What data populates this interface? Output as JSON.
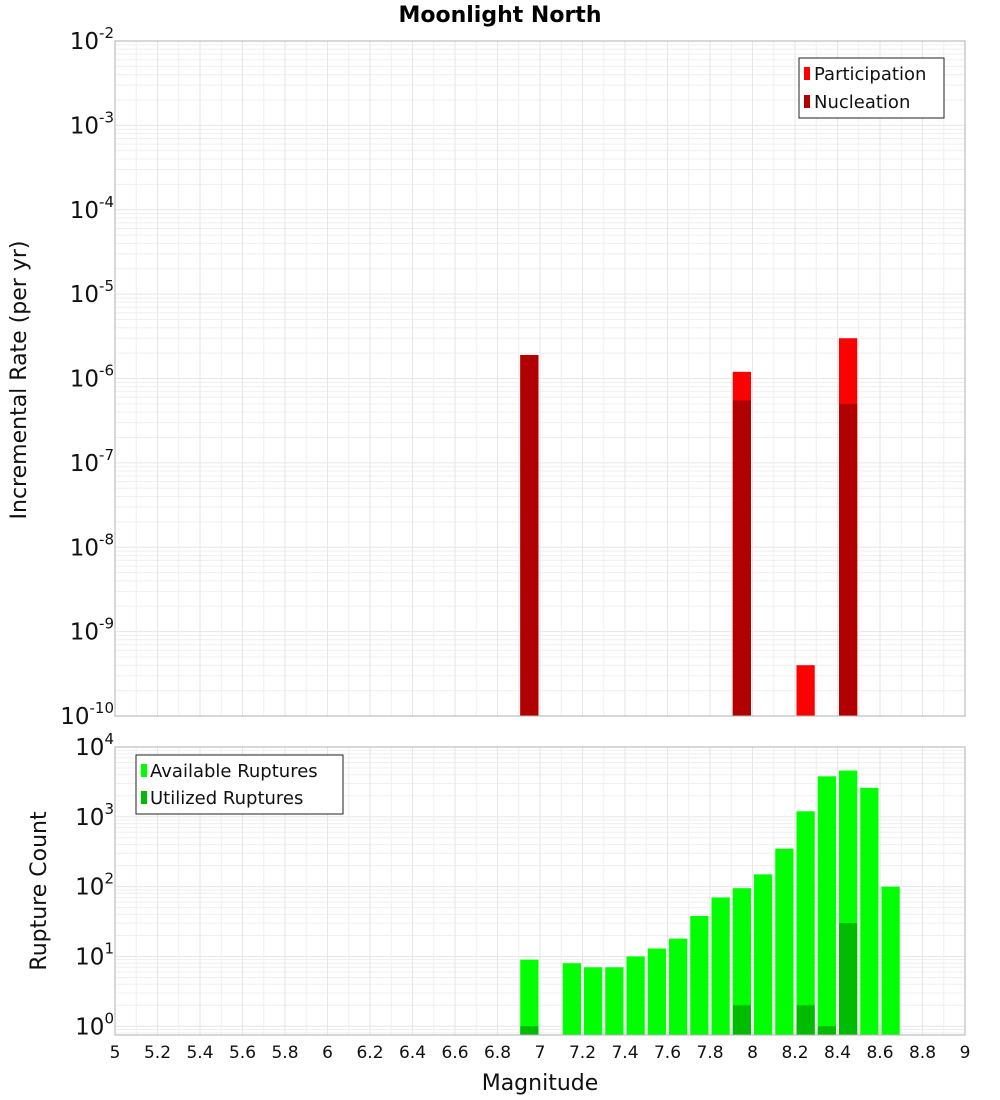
{
  "chart_data": [
    {
      "type": "bar",
      "title": "Moonlight North",
      "xlabel": "",
      "ylabel": "Incremental Rate (per yr)",
      "yscale": "log",
      "ylim": [
        1e-10,
        0.01
      ],
      "xlim": [
        5,
        9
      ],
      "bin_width": 0.1,
      "y_tick_exponents": [
        -10,
        -9,
        -8,
        -7,
        -6,
        -5,
        -4,
        -3,
        -2
      ],
      "legend": {
        "position": "top-right",
        "entries": [
          "Participation",
          "Nucleation"
        ]
      },
      "series": [
        {
          "name": "Participation",
          "color": "#ff0000",
          "points": [
            {
              "x": 6.95,
              "y": 1.9e-06
            },
            {
              "x": 7.95,
              "y": 1.2e-06
            },
            {
              "x": 8.25,
              "y": 4e-10
            },
            {
              "x": 8.45,
              "y": 3e-06
            }
          ]
        },
        {
          "name": "Nucleation",
          "color": "#b00000",
          "points": [
            {
              "x": 6.95,
              "y": 1.9e-06
            },
            {
              "x": 7.95,
              "y": 5.5e-07
            },
            {
              "x": 8.45,
              "y": 5e-07
            }
          ]
        }
      ]
    },
    {
      "type": "bar",
      "title": "",
      "xlabel": "Magnitude",
      "ylabel": "Rupture Count",
      "yscale": "log",
      "ylim": [
        0.75,
        10000
      ],
      "xlim": [
        5,
        9
      ],
      "bin_width": 0.1,
      "x_ticks": [
        "5",
        "5.2",
        "5.4",
        "5.6",
        "5.8",
        "6",
        "6.2",
        "6.4",
        "6.6",
        "6.8",
        "7",
        "7.2",
        "7.4",
        "7.6",
        "7.8",
        "8",
        "8.2",
        "8.4",
        "8.6",
        "8.8",
        "9"
      ],
      "y_tick_exponents": [
        0,
        1,
        2,
        3,
        4
      ],
      "legend": {
        "position": "top-left",
        "entries": [
          "Available Ruptures",
          "Utilized Ruptures"
        ]
      },
      "series": [
        {
          "name": "Available Ruptures",
          "color": "#00ff00",
          "points": [
            {
              "x": 6.95,
              "y": 9
            },
            {
              "x": 7.15,
              "y": 8
            },
            {
              "x": 7.25,
              "y": 7
            },
            {
              "x": 7.35,
              "y": 7
            },
            {
              "x": 7.45,
              "y": 10
            },
            {
              "x": 7.55,
              "y": 13
            },
            {
              "x": 7.65,
              "y": 18
            },
            {
              "x": 7.75,
              "y": 38
            },
            {
              "x": 7.85,
              "y": 70
            },
            {
              "x": 7.95,
              "y": 95
            },
            {
              "x": 8.05,
              "y": 150
            },
            {
              "x": 8.15,
              "y": 350
            },
            {
              "x": 8.25,
              "y": 1200
            },
            {
              "x": 8.35,
              "y": 3800
            },
            {
              "x": 8.45,
              "y": 4600
            },
            {
              "x": 8.55,
              "y": 2600
            },
            {
              "x": 8.65,
              "y": 100
            }
          ]
        },
        {
          "name": "Utilized Ruptures",
          "color": "#00bb00",
          "points": [
            {
              "x": 6.95,
              "y": 1
            },
            {
              "x": 7.95,
              "y": 2
            },
            {
              "x": 8.25,
              "y": 2
            },
            {
              "x": 8.35,
              "y": 1
            },
            {
              "x": 8.45,
              "y": 30
            }
          ]
        }
      ]
    }
  ]
}
